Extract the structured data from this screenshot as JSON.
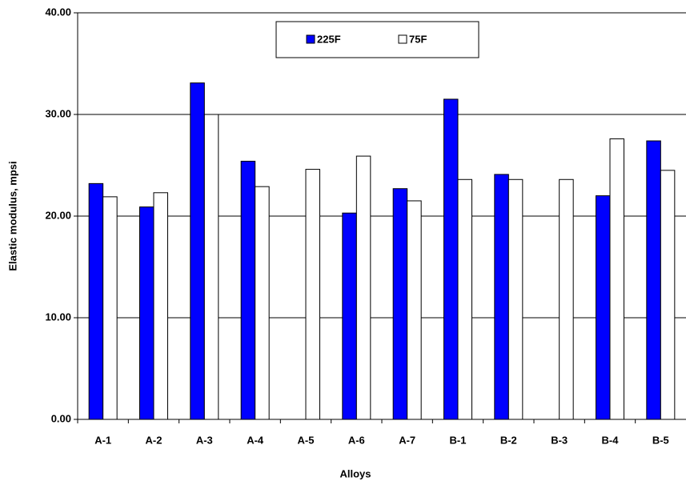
{
  "chart_data": {
    "type": "bar",
    "x_label": "Alloys",
    "y_label": "Elastic modulus, mpsi",
    "categories": [
      "A-1",
      "A-2",
      "A-3",
      "A-4",
      "A-5",
      "A-6",
      "A-7",
      "B-1",
      "B-2",
      "B-3",
      "B-4",
      "B-5"
    ],
    "series": [
      {
        "name": "225F",
        "color": "#0000ff",
        "values": [
          23.2,
          20.9,
          33.1,
          25.4,
          null,
          20.3,
          22.7,
          31.5,
          24.1,
          null,
          22.0,
          27.4
        ]
      },
      {
        "name": "75F",
        "color": "#ffffff",
        "values": [
          21.9,
          22.3,
          30.0,
          22.9,
          24.6,
          25.9,
          21.5,
          23.6,
          23.6,
          23.6,
          27.6,
          24.5
        ]
      }
    ],
    "ylim": [
      0,
      40
    ],
    "yticks": [
      {
        "value": 0,
        "label": "0.00"
      },
      {
        "value": 10,
        "label": "10.00"
      },
      {
        "value": 20,
        "label": "20.00"
      },
      {
        "value": 30,
        "label": "30.00"
      },
      {
        "value": 40,
        "label": "40.00"
      }
    ],
    "grid": true,
    "legend": "top"
  }
}
